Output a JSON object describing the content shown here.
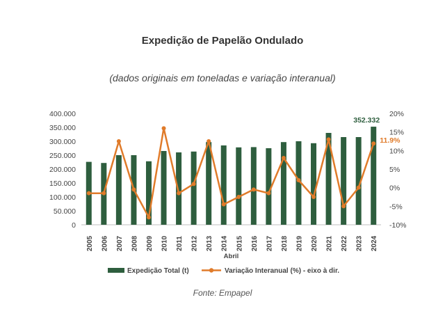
{
  "page": {
    "title": "Expedição de Papelão Ondulado",
    "subtitle": "(dados originais em toneladas e variação interanual)",
    "source": "Fonte: Empapel"
  },
  "chart_data": {
    "type": "bar+line",
    "xlabel": "Abril",
    "categories": [
      "2005",
      "2006",
      "2007",
      "2008",
      "2009",
      "2010",
      "2011",
      "2012",
      "2013",
      "2014",
      "2015",
      "2016",
      "2017",
      "2018",
      "2019",
      "2020",
      "2021",
      "2022",
      "2023",
      "2024"
    ],
    "y_left": {
      "ylim": [
        0,
        400000
      ],
      "ticks": [
        0,
        50000,
        100000,
        150000,
        200000,
        250000,
        300000,
        350000,
        400000
      ],
      "tick_labels": [
        "0",
        "50.000",
        "100.000",
        "150.000",
        "200.000",
        "250.000",
        "300.000",
        "350.000",
        "400.000"
      ]
    },
    "y_right": {
      "ylim": [
        -10,
        20
      ],
      "ticks": [
        -10,
        -5,
        0,
        5,
        10,
        15,
        20
      ],
      "tick_labels": [
        "-10%",
        "-5%",
        "0%",
        "5%",
        "10%",
        "15%",
        "20%"
      ]
    },
    "series": [
      {
        "name": "Expedição Total (t)",
        "kind": "bar",
        "axis": "left",
        "color": "#2e5e3e",
        "values": [
          226000,
          222000,
          250000,
          250000,
          228000,
          265000,
          260000,
          263000,
          297000,
          285000,
          278000,
          279000,
          275000,
          297000,
          300000,
          293000,
          330000,
          315000,
          315000,
          352332
        ]
      },
      {
        "name": "Variação Interanual (%) - eixo à dir.",
        "kind": "line",
        "axis": "right",
        "color": "#e07b2a",
        "values": [
          -1.5,
          -1.5,
          12.5,
          -0.5,
          -8.0,
          16.0,
          -1.5,
          1.0,
          12.5,
          -4.5,
          -2.5,
          -0.5,
          -1.5,
          8.0,
          2.0,
          -2.5,
          13.0,
          -5.0,
          0.0,
          11.9
        ]
      }
    ],
    "annotations": [
      {
        "label": "352.332",
        "series": 0,
        "index": 19,
        "color": "#2e5e3e"
      },
      {
        "label": "11.9%",
        "series": 1,
        "index": 19,
        "color": "#e07b2a"
      }
    ],
    "legend_position": "bottom",
    "grid": false
  }
}
